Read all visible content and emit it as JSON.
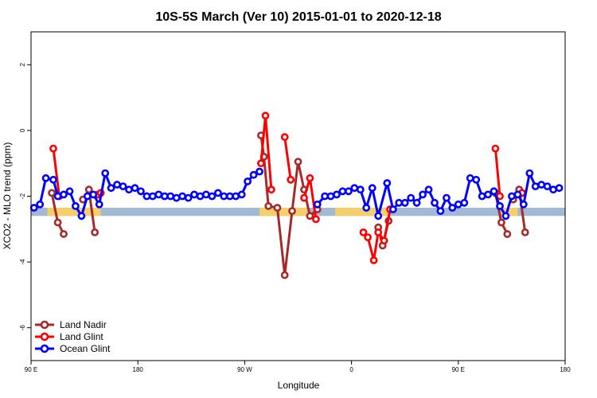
{
  "chart_data": {
    "type": "line",
    "title": "10S-5S March (Ver 10)   2015-01-01 to 2020-12-18",
    "xlabel": "Longitude",
    "ylabel": "XCO2 - MLO trend (ppm)",
    "xlim": [
      90,
      450
    ],
    "ylim": [
      -7,
      3
    ],
    "xticks": [
      {
        "value": 90,
        "label": "90 E"
      },
      {
        "value": 162,
        "label": "180"
      },
      {
        "value": 234,
        "label": "90 W"
      },
      {
        "value": 306,
        "label": "0"
      },
      {
        "value": 378,
        "label": "90 E"
      },
      {
        "value": 450,
        "label": "180"
      }
    ],
    "yticks": [
      {
        "value": 2,
        "label": "2"
      },
      {
        "value": 0,
        "label": "0"
      },
      {
        "value": -2,
        "label": "-2"
      },
      {
        "value": -4,
        "label": "-4"
      },
      {
        "value": -6,
        "label": "-6"
      }
    ],
    "grid": false,
    "legend_position": "bottom-left",
    "band": {
      "color": "#a3b8d4",
      "ymin": -2.6,
      "ymax": -2.35,
      "highlight_color": "#f5d06a",
      "highlights": [
        {
          "xmin": 101,
          "xmax": 137
        },
        {
          "xmin": 244,
          "xmax": 277
        },
        {
          "xmin": 295,
          "xmax": 331
        },
        {
          "xmin": 406,
          "xmax": 418
        }
      ]
    },
    "series": [
      {
        "name": "Land Nadir",
        "color": "#a52a2a",
        "segments": [
          [
            [
              104,
              -1.9
            ],
            [
              108,
              -2.8
            ],
            [
              112,
              -3.15
            ]
          ],
          [
            [
              125,
              -2.1
            ],
            [
              129,
              -1.8
            ],
            [
              133,
              -3.1
            ]
          ],
          [
            [
              245,
              -0.15
            ],
            [
              247,
              -0.8
            ],
            [
              250,
              -2.3
            ],
            [
              256,
              -2.35
            ],
            [
              261,
              -4.4
            ],
            [
              266,
              -2.45
            ],
            [
              270,
              -0.95
            ],
            [
              274,
              -1.8
            ],
            [
              278,
              -2.6
            ],
            [
              283,
              -2.4
            ]
          ],
          [
            [
              324,
              -2.95
            ],
            [
              327,
              -3.5
            ],
            [
              331,
              -2.75
            ]
          ],
          [
            [
              403,
              -1.9
            ],
            [
              407,
              -2.8
            ],
            [
              411,
              -3.15
            ]
          ],
          [
            [
              415,
              -2.1
            ],
            [
              419,
              -1.8
            ],
            [
              423,
              -3.1
            ]
          ]
        ]
      },
      {
        "name": "Land Glint",
        "color": "#ff0000",
        "segments": [
          [
            [
              105,
              -0.55
            ],
            [
              109,
              -2.0
            ]
          ],
          [
            [
              135,
              -1.95
            ],
            [
              137,
              -1.9
            ]
          ],
          [
            [
              245,
              -1.0
            ],
            [
              248,
              0.45
            ],
            [
              252,
              -1.8
            ]
          ],
          [
            [
              261,
              -0.2
            ],
            [
              265,
              -1.5
            ]
          ],
          [
            [
              274,
              -2.05
            ],
            [
              278,
              -1.45
            ],
            [
              282,
              -2.7
            ]
          ],
          [
            [
              314,
              -3.1
            ],
            [
              317,
              -3.25
            ],
            [
              321,
              -3.95
            ],
            [
              324,
              -3.1
            ],
            [
              328,
              -3.35
            ],
            [
              332,
              -2.4
            ]
          ],
          [
            [
              403,
              -0.55
            ],
            [
              406,
              -2.0
            ]
          ],
          [
            [
              419,
              -1.95
            ],
            [
              421,
              -1.9
            ]
          ]
        ]
      },
      {
        "name": "Ocean Glint",
        "color": "#0000ff",
        "segments": [
          [
            [
              92,
              -2.35
            ],
            [
              96,
              -2.25
            ],
            [
              100,
              -1.45
            ],
            [
              105,
              -1.5
            ],
            [
              108,
              -2.0
            ],
            [
              112,
              -1.95
            ],
            [
              116,
              -1.85
            ],
            [
              120,
              -2.3
            ],
            [
              124,
              -2.6
            ],
            [
              128,
              -2.0
            ],
            [
              132,
              -1.95
            ],
            [
              136,
              -2.25
            ],
            [
              140,
              -1.3
            ],
            [
              144,
              -1.75
            ],
            [
              148,
              -1.65
            ],
            [
              152,
              -1.7
            ],
            [
              156,
              -1.8
            ],
            [
              160,
              -1.75
            ],
            [
              164,
              -1.85
            ],
            [
              168,
              -2.0
            ],
            [
              172,
              -2.0
            ],
            [
              176,
              -1.95
            ],
            [
              180,
              -2.0
            ],
            [
              184,
              -2.0
            ],
            [
              188,
              -2.05
            ],
            [
              192,
              -2.0
            ],
            [
              196,
              -2.05
            ],
            [
              200,
              -1.95
            ],
            [
              204,
              -2.0
            ],
            [
              208,
              -1.95
            ],
            [
              212,
              -2.0
            ],
            [
              216,
              -1.9
            ],
            [
              220,
              -2.0
            ],
            [
              224,
              -2.0
            ],
            [
              228,
              -2.0
            ],
            [
              232,
              -1.95
            ],
            [
              236,
              -1.55
            ],
            [
              240,
              -1.35
            ],
            [
              244,
              -1.25
            ]
          ],
          [
            [
              283,
              -2.25
            ],
            [
              288,
              -2.0
            ],
            [
              292,
              -2.0
            ],
            [
              296,
              -1.95
            ],
            [
              300,
              -1.85
            ],
            [
              304,
              -1.85
            ],
            [
              308,
              -1.75
            ],
            [
              312,
              -1.8
            ],
            [
              316,
              -2.35
            ],
            [
              320,
              -1.75
            ],
            [
              324,
              -2.6
            ],
            [
              330,
              -1.6
            ],
            [
              334,
              -2.4
            ],
            [
              338,
              -2.2
            ],
            [
              342,
              -2.2
            ],
            [
              346,
              -2.05
            ],
            [
              350,
              -2.2
            ],
            [
              354,
              -1.95
            ],
            [
              358,
              -1.8
            ],
            [
              362,
              -2.2
            ],
            [
              366,
              -2.45
            ],
            [
              370,
              -2.05
            ],
            [
              374,
              -2.35
            ],
            [
              378,
              -2.25
            ],
            [
              382,
              -2.2
            ],
            [
              386,
              -1.45
            ],
            [
              390,
              -1.5
            ],
            [
              394,
              -2.0
            ],
            [
              398,
              -1.95
            ],
            [
              402,
              -1.85
            ],
            [
              406,
              -2.3
            ],
            [
              410,
              -2.6
            ],
            [
              414,
              -2.0
            ],
            [
              418,
              -1.95
            ],
            [
              422,
              -2.25
            ],
            [
              426,
              -1.3
            ],
            [
              430,
              -1.7
            ],
            [
              434,
              -1.65
            ],
            [
              438,
              -1.7
            ],
            [
              442,
              -1.8
            ],
            [
              446,
              -1.75
            ]
          ]
        ]
      }
    ]
  }
}
